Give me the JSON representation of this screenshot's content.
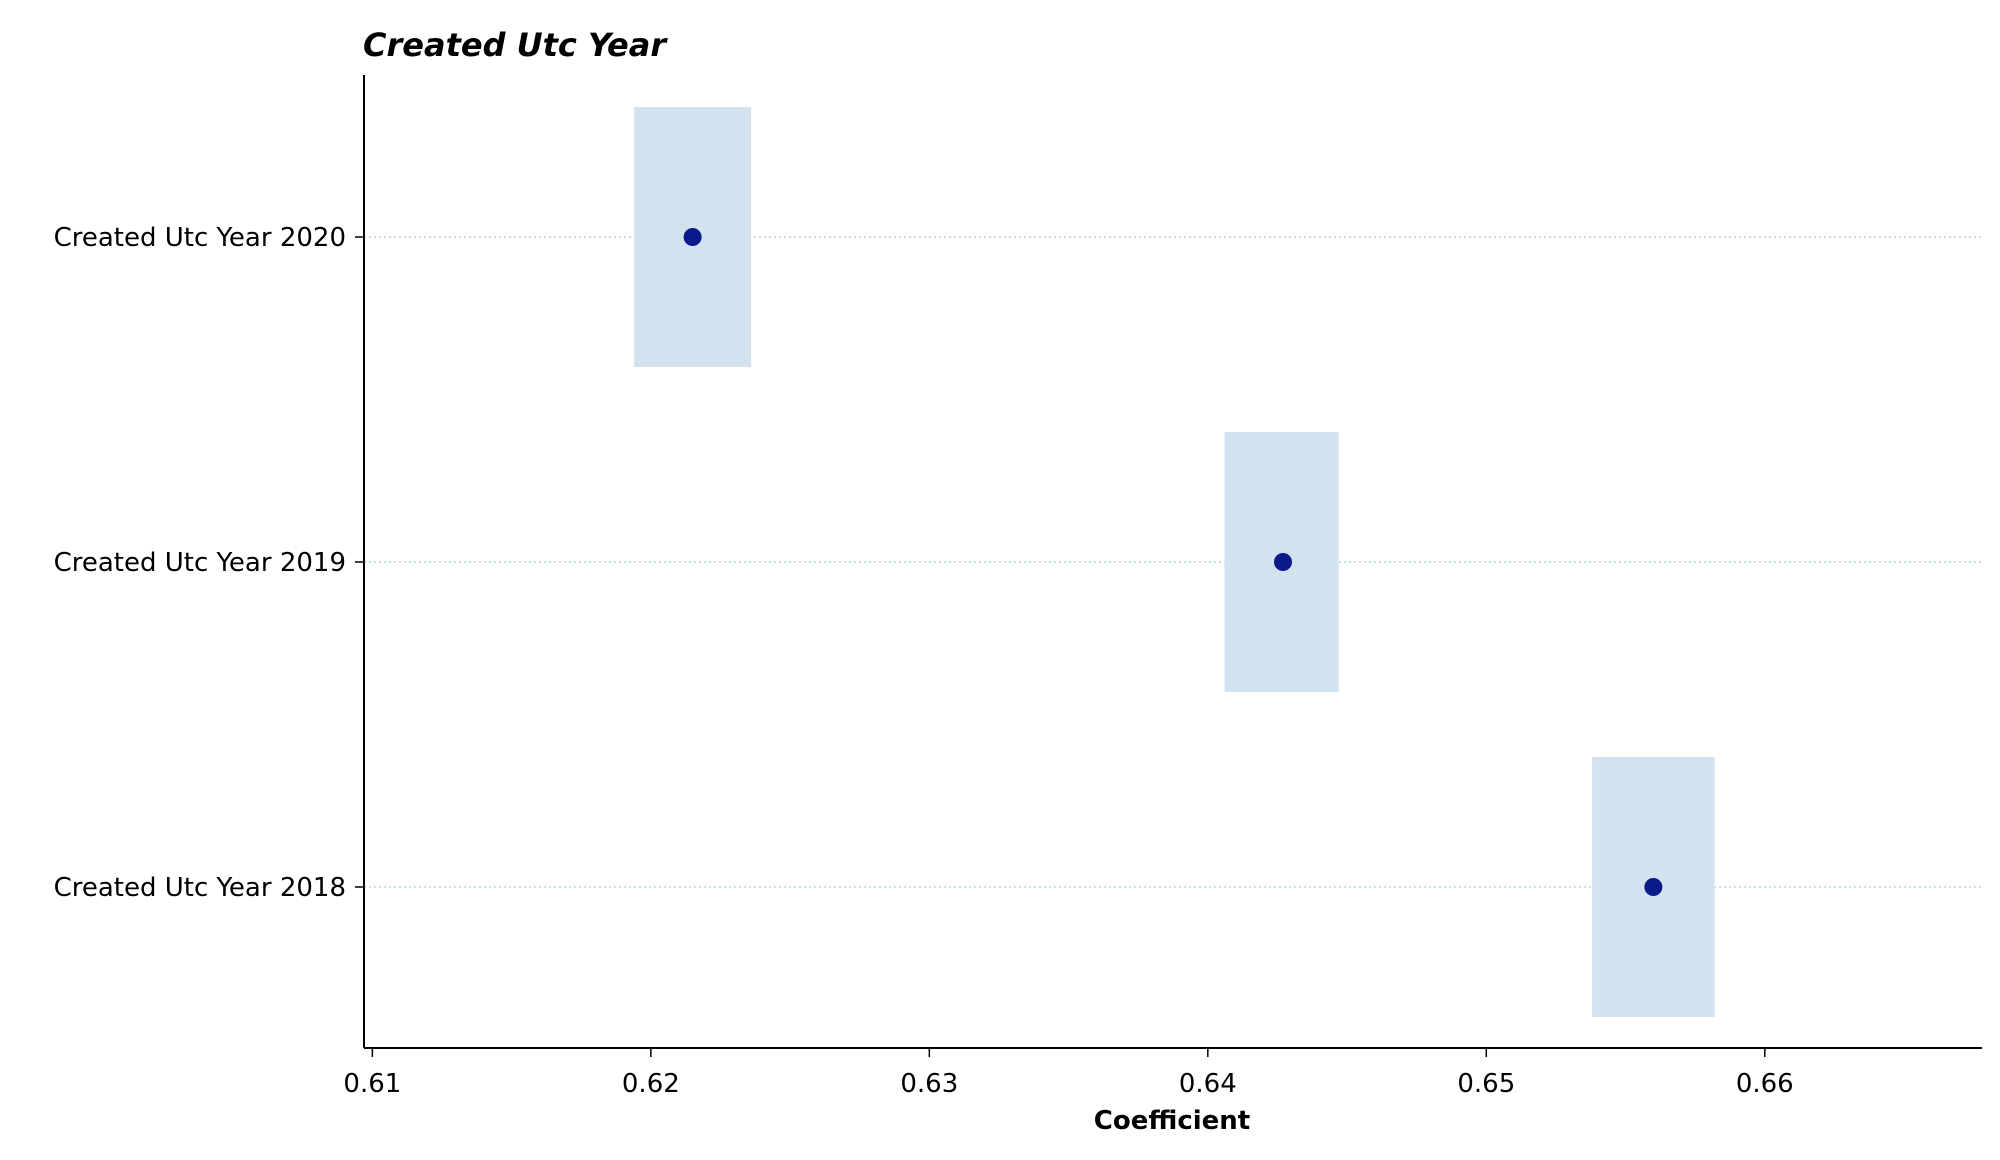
{
  "chart_data": {
    "type": "scatter",
    "title": "Created Utc Year",
    "xlabel": "Coefficient",
    "ylabel": "",
    "xlim": [
      0.6097,
      0.6678
    ],
    "xticks": [
      0.61,
      0.62,
      0.63,
      0.64,
      0.65,
      0.66
    ],
    "xtick_labels": [
      "0.61",
      "0.62",
      "0.63",
      "0.64",
      "0.65",
      "0.66"
    ],
    "categories": [
      "Created Utc Year 2018",
      "Created Utc Year 2019",
      "Created Utc Year 2020"
    ],
    "points": [
      {
        "label": "Created Utc Year 2018",
        "value": 0.656,
        "ci_low": 0.6538,
        "ci_high": 0.6582
      },
      {
        "label": "Created Utc Year 2019",
        "value": 0.6427,
        "ci_low": 0.6406,
        "ci_high": 0.6447
      },
      {
        "label": "Created Utc Year 2020",
        "value": 0.6215,
        "ci_low": 0.6194,
        "ci_high": 0.6236
      }
    ],
    "grid": "horizontal dotted at categories",
    "colors": {
      "point": "#0a1a8a",
      "ci_band": "#d2e3ef",
      "grid": "#a9c9dc",
      "axis": "#000000"
    }
  }
}
